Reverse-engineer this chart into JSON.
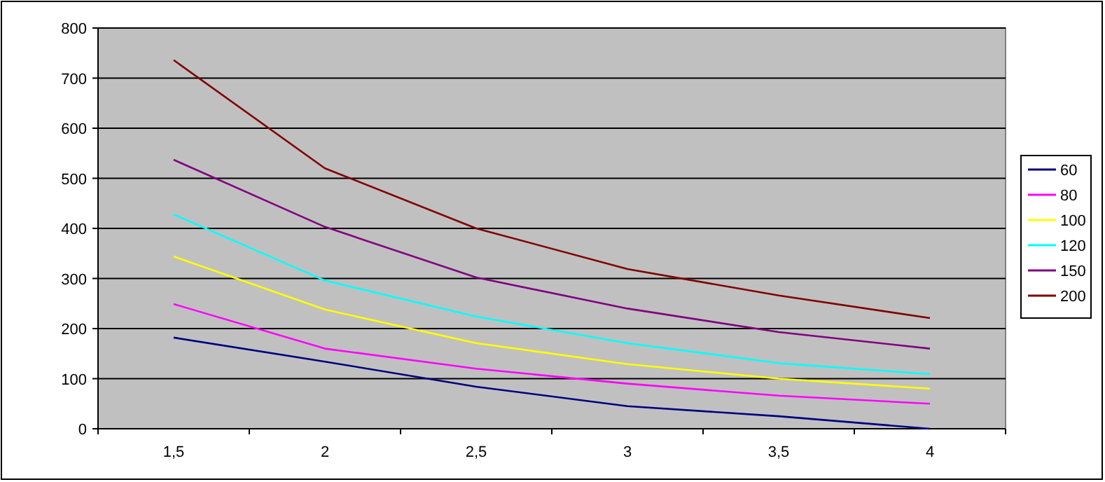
{
  "chart_data": {
    "type": "line",
    "categories": [
      "1,5",
      "2",
      "2,5",
      "3",
      "3,5",
      "4"
    ],
    "series": [
      {
        "name": "60",
        "color": "#000080",
        "values": [
          182,
          134,
          84,
          45,
          25,
          0
        ]
      },
      {
        "name": "80",
        "color": "#ff00ff",
        "values": [
          249,
          160,
          120,
          90,
          66,
          50
        ]
      },
      {
        "name": "100",
        "color": "#ffff00",
        "values": [
          344,
          238,
          171,
          129,
          100,
          80
        ]
      },
      {
        "name": "120",
        "color": "#00ffff",
        "values": [
          428,
          296,
          224,
          171,
          131,
          109
        ]
      },
      {
        "name": "150",
        "color": "#800080",
        "values": [
          537,
          403,
          302,
          240,
          193,
          160
        ]
      },
      {
        "name": "200",
        "color": "#800000",
        "values": [
          736,
          520,
          400,
          319,
          266,
          221
        ]
      }
    ],
    "ylim": [
      0,
      800
    ],
    "yticks": [
      0,
      100,
      200,
      300,
      400,
      500,
      600,
      700,
      800
    ],
    "grid": "y",
    "legend": "right",
    "marker": "none",
    "line_style": "solid"
  }
}
